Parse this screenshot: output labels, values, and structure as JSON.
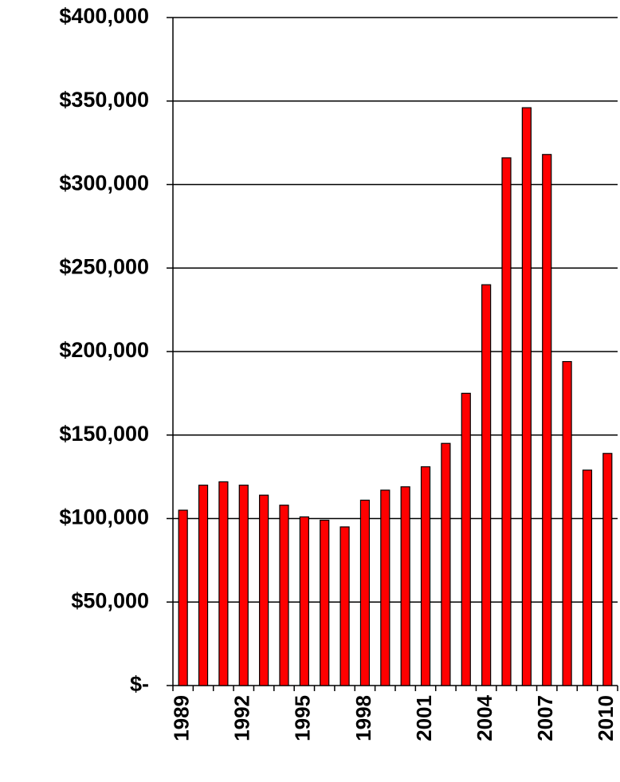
{
  "chart_data": {
    "type": "bar",
    "categories": [
      "1989",
      null,
      null,
      "1992",
      null,
      null,
      "1995",
      null,
      null,
      "1998",
      null,
      null,
      "2001",
      null,
      null,
      "2004",
      null,
      null,
      "2007",
      null,
      null,
      "2010"
    ],
    "values": [
      105000,
      120000,
      122000,
      120000,
      114000,
      108000,
      101000,
      99000,
      95000,
      111000,
      117000,
      119000,
      131000,
      145000,
      175000,
      240000,
      316000,
      346000,
      318000,
      194000,
      129000,
      139000
    ],
    "color": "#ff0000",
    "ylim": [
      0,
      400000
    ],
    "yticks": [
      {
        "value": 0,
        "label": "$-"
      },
      {
        "value": 50000,
        "label": "$50,000"
      },
      {
        "value": 100000,
        "label": "$100,000"
      },
      {
        "value": 150000,
        "label": "$150,000"
      },
      {
        "value": 200000,
        "label": "$200,000"
      },
      {
        "value": 250000,
        "label": "$250,000"
      },
      {
        "value": 300000,
        "label": "$300,000"
      },
      {
        "value": 350000,
        "label": "$350,000"
      },
      {
        "value": 400000,
        "label": "$400,000"
      }
    ],
    "grid": true
  }
}
